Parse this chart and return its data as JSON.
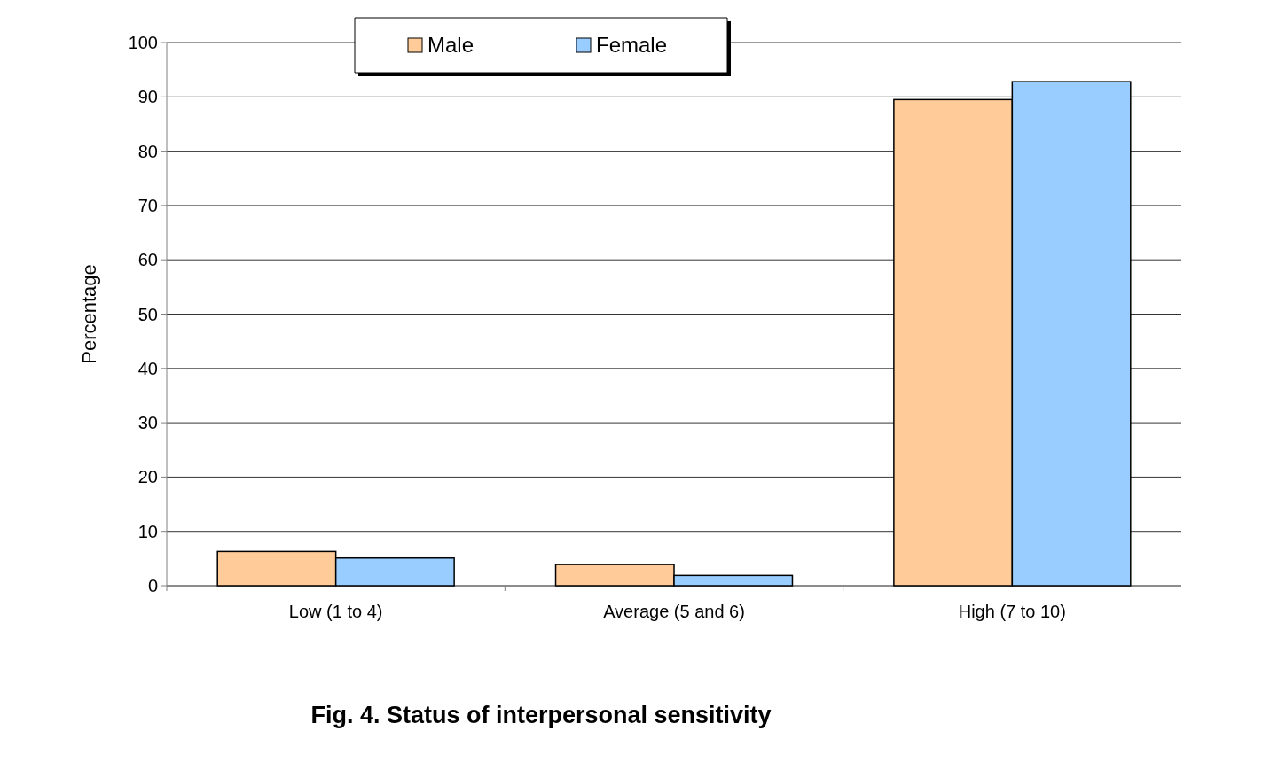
{
  "chart_data": {
    "type": "bar",
    "title": "Fig. 4. Status of interpersonal sensitivity",
    "ylabel": "Percentage",
    "categories": [
      "Low (1 to 4)",
      "Average (5 and 6)",
      "High (7 to 10)"
    ],
    "series": [
      {
        "name": "Male",
        "color": "#ffcc99",
        "values": [
          6.3,
          3.9,
          89.5
        ]
      },
      {
        "name": "Female",
        "color": "#99ccff",
        "values": [
          5.1,
          1.9,
          92.8
        ]
      }
    ],
    "ylim": [
      0,
      100
    ],
    "yticks": [
      0,
      10,
      20,
      30,
      40,
      50,
      60,
      70,
      80,
      90,
      100
    ],
    "grid": "y",
    "legend": "top"
  }
}
